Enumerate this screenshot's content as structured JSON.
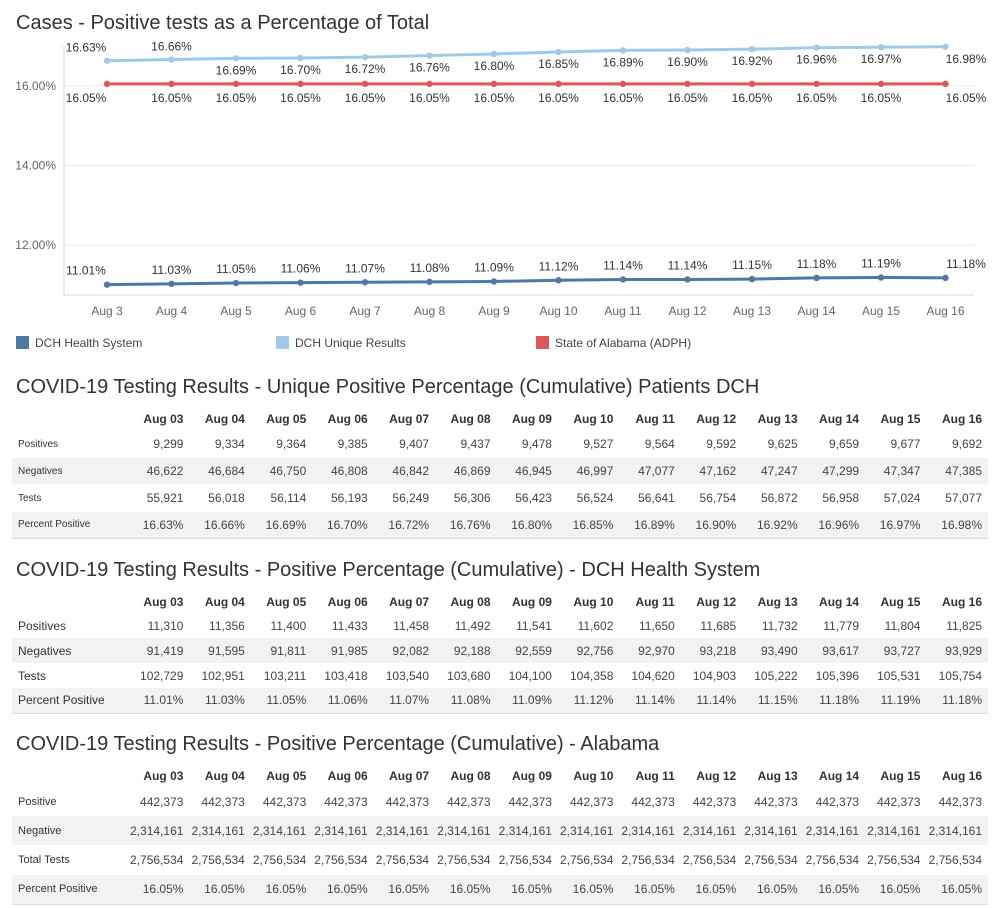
{
  "chart_title": "Cases - Positive tests as a Percentage of Total",
  "chart_data": {
    "type": "line",
    "title": "Cases - Positive tests as a Percentage of Total",
    "categories": [
      "Aug 3",
      "Aug 4",
      "Aug 5",
      "Aug 6",
      "Aug 7",
      "Aug 8",
      "Aug 9",
      "Aug 10",
      "Aug 11",
      "Aug 12",
      "Aug 13",
      "Aug 14",
      "Aug 15",
      "Aug 16"
    ],
    "yticks": [
      "16.00%",
      "14.00%",
      "12.00%"
    ],
    "ylim": [
      10.75,
      17.0
    ],
    "grid": true,
    "legend_position": "bottom",
    "series": [
      {
        "name": "DCH Health System",
        "color": "#4e79a7",
        "values": [
          11.01,
          11.03,
          11.05,
          11.06,
          11.07,
          11.08,
          11.09,
          11.12,
          11.14,
          11.14,
          11.15,
          11.18,
          11.19,
          11.18
        ],
        "labels": [
          "11.01%",
          "11.03%",
          "11.05%",
          "11.06%",
          "11.07%",
          "11.08%",
          "11.09%",
          "11.12%",
          "11.14%",
          "11.14%",
          "11.15%",
          "11.18%",
          "11.19%",
          "11.18%"
        ]
      },
      {
        "name": "DCH Unique Results",
        "color": "#a0cbe8",
        "values": [
          16.63,
          16.66,
          16.69,
          16.7,
          16.72,
          16.76,
          16.8,
          16.85,
          16.89,
          16.9,
          16.92,
          16.96,
          16.97,
          16.98
        ],
        "labels": [
          "16.63%",
          "16.66%",
          "16.69%",
          "16.70%",
          "16.72%",
          "16.76%",
          "16.80%",
          "16.85%",
          "16.89%",
          "16.90%",
          "16.92%",
          "16.96%",
          "16.97%",
          "16.98%"
        ]
      },
      {
        "name": "State of Alabama (ADPH)",
        "color": "#e15759",
        "values": [
          16.05,
          16.05,
          16.05,
          16.05,
          16.05,
          16.05,
          16.05,
          16.05,
          16.05,
          16.05,
          16.05,
          16.05,
          16.05,
          16.05
        ],
        "labels": [
          "16.05%",
          "16.05%",
          "16.05%",
          "16.05%",
          "16.05%",
          "16.05%",
          "16.05%",
          "16.05%",
          "16.05%",
          "16.05%",
          "16.05%",
          "16.05%",
          "16.05%",
          "16.05%"
        ]
      }
    ]
  },
  "legend": [
    {
      "label": "DCH Health System",
      "color": "#4e79a7"
    },
    {
      "label": "DCH Unique Results",
      "color": "#a0cbe8"
    },
    {
      "label": "State of Alabama (ADPH)",
      "color": "#e15759"
    }
  ],
  "tables": [
    {
      "title": "COVID-19 Testing Results - Unique Positive Percentage (Cumulative) Patients DCH",
      "columns": [
        "Aug 03",
        "Aug 04",
        "Aug 05",
        "Aug 06",
        "Aug 07",
        "Aug 08",
        "Aug 09",
        "Aug 10",
        "Aug 11",
        "Aug 12",
        "Aug 13",
        "Aug 14",
        "Aug 15",
        "Aug 16"
      ],
      "rows": [
        {
          "label": "Positives",
          "values": [
            "9,299",
            "9,334",
            "9,364",
            "9,385",
            "9,407",
            "9,437",
            "9,478",
            "9,527",
            "9,564",
            "9,592",
            "9,625",
            "9,659",
            "9,677",
            "9,692"
          ]
        },
        {
          "label": "Negatives",
          "values": [
            "46,622",
            "46,684",
            "46,750",
            "46,808",
            "46,842",
            "46,869",
            "46,945",
            "46,997",
            "47,077",
            "47,162",
            "47,247",
            "47,299",
            "47,347",
            "47,385"
          ]
        },
        {
          "label": "Tests",
          "values": [
            "55,921",
            "56,018",
            "56,114",
            "56,193",
            "56,249",
            "56,306",
            "56,423",
            "56,524",
            "56,641",
            "56,754",
            "56,872",
            "56,958",
            "57,024",
            "57,077"
          ]
        },
        {
          "label": "Percent Positive",
          "values": [
            "16.63%",
            "16.66%",
            "16.69%",
            "16.70%",
            "16.72%",
            "16.76%",
            "16.80%",
            "16.85%",
            "16.89%",
            "16.90%",
            "16.92%",
            "16.96%",
            "16.97%",
            "16.98%"
          ]
        }
      ]
    },
    {
      "title": "COVID-19 Testing Results - Positive Percentage (Cumulative) - DCH Health System",
      "columns": [
        "Aug 03",
        "Aug 04",
        "Aug 05",
        "Aug 06",
        "Aug 07",
        "Aug 08",
        "Aug 09",
        "Aug 10",
        "Aug 11",
        "Aug 12",
        "Aug 13",
        "Aug 14",
        "Aug 15",
        "Aug 16"
      ],
      "rows": [
        {
          "label": "Positives",
          "values": [
            "11,310",
            "11,356",
            "11,400",
            "11,433",
            "11,458",
            "11,492",
            "11,541",
            "11,602",
            "11,650",
            "11,685",
            "11,732",
            "11,779",
            "11,804",
            "11,825"
          ]
        },
        {
          "label": "Negatives",
          "values": [
            "91,419",
            "91,595",
            "91,811",
            "91,985",
            "92,082",
            "92,188",
            "92,559",
            "92,756",
            "92,970",
            "93,218",
            "93,490",
            "93,617",
            "93,727",
            "93,929"
          ]
        },
        {
          "label": "Tests",
          "values": [
            "102,729",
            "102,951",
            "103,211",
            "103,418",
            "103,540",
            "103,680",
            "104,100",
            "104,358",
            "104,620",
            "104,903",
            "105,222",
            "105,396",
            "105,531",
            "105,754"
          ]
        },
        {
          "label": "Percent Positive",
          "values": [
            "11.01%",
            "11.03%",
            "11.05%",
            "11.06%",
            "11.07%",
            "11.08%",
            "11.09%",
            "11.12%",
            "11.14%",
            "11.14%",
            "11.15%",
            "11.18%",
            "11.19%",
            "11.18%"
          ]
        }
      ]
    },
    {
      "title": "COVID-19 Testing Results - Positive Percentage (Cumulative) - Alabama",
      "columns": [
        "Aug 03",
        "Aug 04",
        "Aug 05",
        "Aug 06",
        "Aug 07",
        "Aug 08",
        "Aug 09",
        "Aug 10",
        "Aug 11",
        "Aug 12",
        "Aug 13",
        "Aug 14",
        "Aug 15",
        "Aug 16"
      ],
      "rows": [
        {
          "label": "Positive",
          "values": [
            "442,373",
            "442,373",
            "442,373",
            "442,373",
            "442,373",
            "442,373",
            "442,373",
            "442,373",
            "442,373",
            "442,373",
            "442,373",
            "442,373",
            "442,373",
            "442,373"
          ]
        },
        {
          "label": "Negative",
          "values": [
            "2,314,161",
            "2,314,161",
            "2,314,161",
            "2,314,161",
            "2,314,161",
            "2,314,161",
            "2,314,161",
            "2,314,161",
            "2,314,161",
            "2,314,161",
            "2,314,161",
            "2,314,161",
            "2,314,161",
            "2,314,161"
          ]
        },
        {
          "label": "Total Tests",
          "values": [
            "2,756,534",
            "2,756,534",
            "2,756,534",
            "2,756,534",
            "2,756,534",
            "2,756,534",
            "2,756,534",
            "2,756,534",
            "2,756,534",
            "2,756,534",
            "2,756,534",
            "2,756,534",
            "2,756,534",
            "2,756,534"
          ]
        },
        {
          "label": "Percent Positive",
          "values": [
            "16.05%",
            "16.05%",
            "16.05%",
            "16.05%",
            "16.05%",
            "16.05%",
            "16.05%",
            "16.05%",
            "16.05%",
            "16.05%",
            "16.05%",
            "16.05%",
            "16.05%",
            "16.05%"
          ]
        }
      ]
    }
  ]
}
